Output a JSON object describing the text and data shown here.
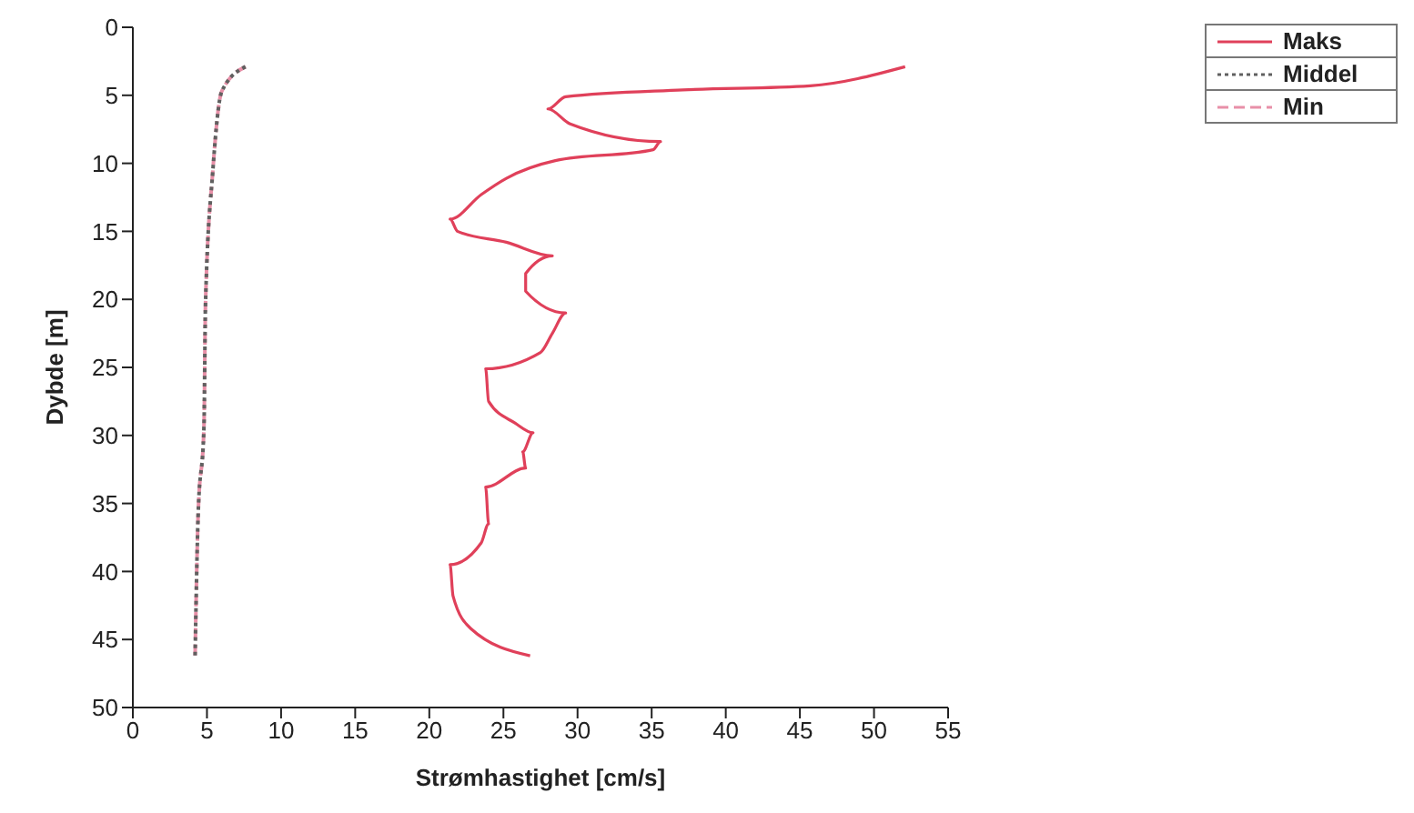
{
  "chart_data": {
    "type": "line",
    "xlabel": "Strømhastighet [cm/s]",
    "ylabel": "Dybde [m]",
    "xlim": [
      0,
      55
    ],
    "xticks": [
      0,
      5,
      10,
      15,
      20,
      25,
      30,
      35,
      40,
      45,
      50,
      55
    ],
    "ylim": [
      50,
      0
    ],
    "yticks": [
      0,
      5,
      10,
      15,
      20,
      25,
      30,
      35,
      40,
      45,
      50
    ],
    "grid": false,
    "legend": "top right",
    "marker": "none",
    "series": [
      {
        "name": "Min",
        "color": "#e890a8",
        "line_style": "dashed",
        "x": [
          7.6,
          6.0,
          5.4,
          4.9,
          4.8,
          4.4,
          4.2
        ],
        "values": [
          2.9,
          4.7,
          10.5,
          20.4,
          29.3,
          36,
          46.2
        ]
      },
      {
        "name": "Middel",
        "color": "#606060",
        "line_style": "dotted",
        "x": [
          7.6,
          6.0,
          5.4,
          4.9,
          4.8,
          4.4,
          4.2
        ],
        "values": [
          2.9,
          4.7,
          10.5,
          20.4,
          29.3,
          36,
          46.2
        ]
      },
      {
        "name": "Maks",
        "color": "#e0405a",
        "line_style": "solid",
        "x": [
          52.1,
          45.7,
          37.1,
          29.2,
          28.0,
          29.5,
          35.6,
          35.1,
          28.5,
          25.2,
          23.5,
          21.4,
          21.9,
          25.2,
          28.3,
          26.5,
          26.5,
          29.2,
          28.3,
          27.5,
          23.8,
          24.0,
          25.8,
          27.0,
          26.3,
          26.5,
          23.8,
          24.0,
          23.5,
          21.4,
          21.6,
          22.8,
          26.8
        ],
        "values": [
          2.9,
          4.3,
          4.6,
          5.1,
          6.0,
          7.1,
          8.4,
          9.0,
          9.8,
          11.1,
          12.3,
          14.1,
          15.0,
          15.8,
          16.8,
          18.1,
          19.4,
          21.0,
          22.5,
          23.9,
          25.1,
          27.5,
          29.1,
          29.8,
          31.2,
          32.4,
          33.8,
          36.5,
          37.9,
          39.5,
          41.8,
          44.2,
          46.2
        ]
      }
    ]
  }
}
